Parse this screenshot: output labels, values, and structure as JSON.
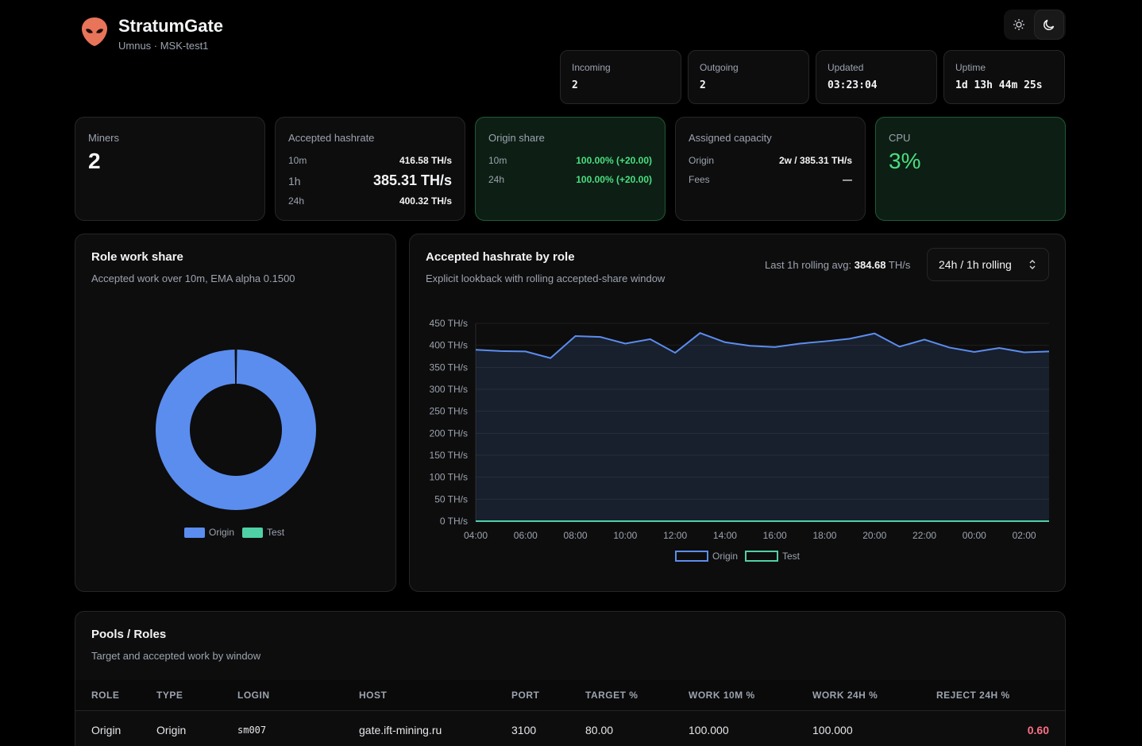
{
  "header": {
    "title": "StratumGate",
    "subtitle": "Umnus · MSK-test1"
  },
  "colors": {
    "origin": "#5b8def",
    "test": "#4fd1a5",
    "accent_green": "#4ade80",
    "reject": "#fb7185"
  },
  "stats": [
    {
      "label": "Incoming",
      "value": "2"
    },
    {
      "label": "Outgoing",
      "value": "2"
    },
    {
      "label": "Updated",
      "value": "03:23:04"
    },
    {
      "label": "Uptime",
      "value": "1d 13h 44m 25s"
    }
  ],
  "miners": {
    "label": "Miners",
    "value": "2"
  },
  "accepted": {
    "label": "Accepted hashrate",
    "rows": [
      {
        "k": "10m",
        "v": "416.58 TH/s"
      },
      {
        "k": "1h",
        "v": "385.31 TH/s"
      },
      {
        "k": "24h",
        "v": "400.32 TH/s"
      }
    ]
  },
  "origin_share": {
    "label": "Origin share",
    "rows": [
      {
        "k": "10m",
        "v": "100.00% (+20.00)"
      },
      {
        "k": "24h",
        "v": "100.00% (+20.00)"
      }
    ]
  },
  "capacity": {
    "label": "Assigned capacity",
    "rows": [
      {
        "k": "Origin",
        "v": "2w / 385.31 TH/s"
      },
      {
        "k": "Fees",
        "v": "—"
      }
    ]
  },
  "cpu": {
    "label": "CPU",
    "value": "3%"
  },
  "role_share": {
    "title": "Role work share",
    "subtitle": "Accepted work over 10m, EMA alpha 0.1500",
    "legend": [
      "Origin",
      "Test"
    ]
  },
  "hashrate_panel": {
    "title": "Accepted hashrate by role",
    "subtitle": "Explicit lookback with rolling accepted-share window",
    "avg_label": "Last 1h rolling avg:",
    "avg_value": "384.68",
    "avg_unit": "TH/s",
    "window_select": "24h / 1h rolling"
  },
  "chart_data": [
    {
      "type": "pie",
      "labels": [
        "Origin",
        "Test"
      ],
      "values": [
        100,
        0
      ]
    },
    {
      "type": "area",
      "x_ticks": [
        "04:00",
        "06:00",
        "08:00",
        "10:00",
        "12:00",
        "14:00",
        "16:00",
        "18:00",
        "20:00",
        "22:00",
        "00:00",
        "02:00"
      ],
      "y_ticks": [
        "0 TH/s",
        "50 TH/s",
        "100 TH/s",
        "150 TH/s",
        "200 TH/s",
        "250 TH/s",
        "300 TH/s",
        "350 TH/s",
        "400 TH/s",
        "450 TH/s"
      ],
      "ylim": [
        0,
        450
      ],
      "series": [
        {
          "name": "Origin",
          "values": [
            390,
            387,
            386,
            371,
            421,
            419,
            404,
            414,
            383,
            428,
            407,
            399,
            396,
            404,
            409,
            415,
            427,
            397,
            413,
            395,
            385,
            394,
            384,
            386
          ]
        },
        {
          "name": "Test",
          "values": [
            0,
            0,
            0,
            0,
            0,
            0,
            0,
            0,
            0,
            0,
            0,
            0,
            0,
            0,
            0,
            0,
            0,
            0,
            0,
            0,
            0,
            0,
            0,
            0
          ]
        }
      ]
    }
  ],
  "pools": {
    "title": "Pools / Roles",
    "subtitle": "Target and accepted work by window",
    "columns": [
      "ROLE",
      "TYPE",
      "LOGIN",
      "HOST",
      "PORT",
      "TARGET %",
      "WORK 10M %",
      "WORK 24H %",
      "REJECT 24H %"
    ],
    "rows": [
      [
        "Origin",
        "Origin",
        "sm007",
        "gate.ift-mining.ru",
        "3100",
        "80.00",
        "100.000",
        "100.000",
        "0.60"
      ]
    ]
  }
}
